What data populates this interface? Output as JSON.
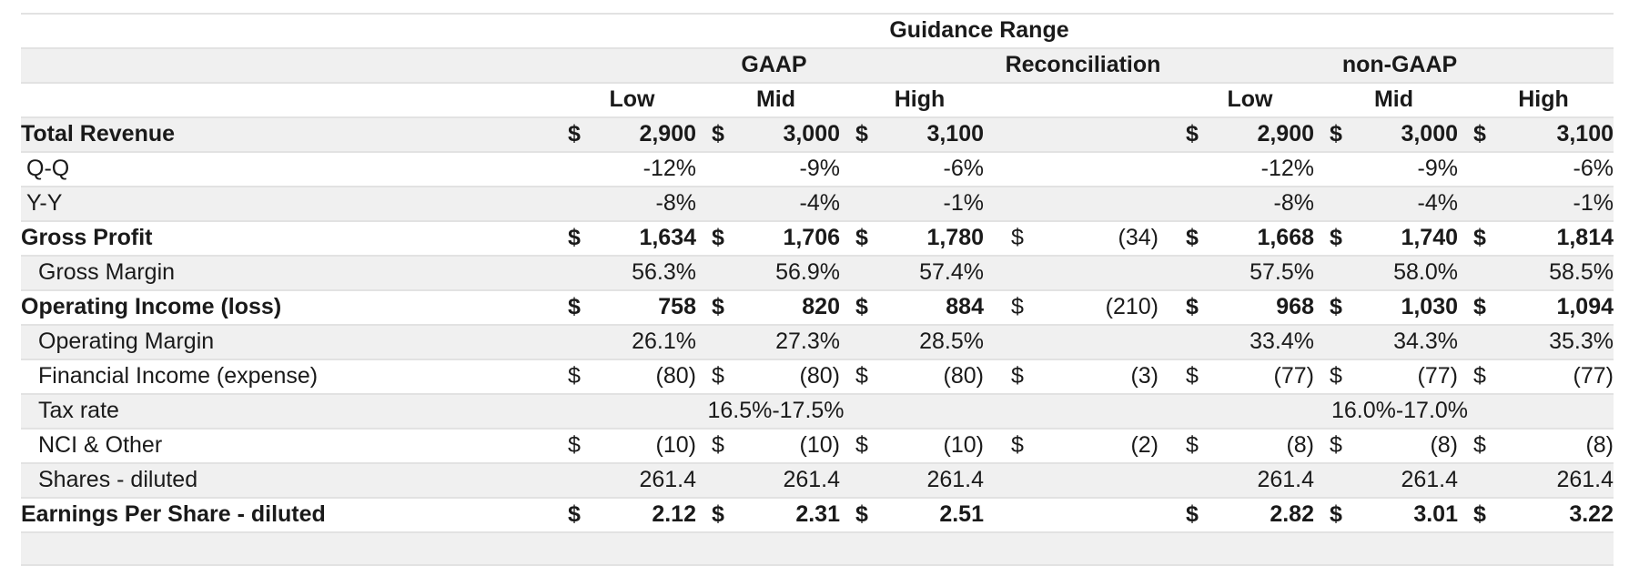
{
  "header": {
    "guidance_range": "Guidance Range",
    "gaap": "GAAP",
    "reconciliation": "Reconciliation",
    "non_gaap": "non-GAAP",
    "low": "Low",
    "mid": "Mid",
    "high": "High"
  },
  "rows": [
    {
      "label": "Total Revenue",
      "bold": true,
      "indent": false,
      "gaap": [
        {
          "d": "$",
          "v": "2,900"
        },
        {
          "d": "$",
          "v": "3,000"
        },
        {
          "d": "$",
          "v": "3,100"
        }
      ],
      "rec": null,
      "non_gaap": [
        {
          "d": "$",
          "v": "2,900"
        },
        {
          "d": "$",
          "v": "3,000"
        },
        {
          "d": "$",
          "v": "3,100"
        }
      ]
    },
    {
      "label": "Q-Q",
      "bold": false,
      "indent": "small",
      "gaap": [
        {
          "d": "",
          "v": "-12%"
        },
        {
          "d": "",
          "v": "-9%"
        },
        {
          "d": "",
          "v": "-6%"
        }
      ],
      "rec": null,
      "non_gaap": [
        {
          "d": "",
          "v": "-12%"
        },
        {
          "d": "",
          "v": "-9%"
        },
        {
          "d": "",
          "v": "-6%"
        }
      ]
    },
    {
      "label": "Y-Y",
      "bold": false,
      "indent": "small",
      "gaap": [
        {
          "d": "",
          "v": "-8%"
        },
        {
          "d": "",
          "v": "-4%"
        },
        {
          "d": "",
          "v": "-1%"
        }
      ],
      "rec": null,
      "non_gaap": [
        {
          "d": "",
          "v": "-8%"
        },
        {
          "d": "",
          "v": "-4%"
        },
        {
          "d": "",
          "v": "-1%"
        }
      ]
    },
    {
      "label": "Gross Profit",
      "bold": true,
      "indent": false,
      "gaap": [
        {
          "d": "$",
          "v": "1,634"
        },
        {
          "d": "$",
          "v": "1,706"
        },
        {
          "d": "$",
          "v": "1,780"
        }
      ],
      "rec": {
        "d": "$",
        "v": "(34)"
      },
      "non_gaap": [
        {
          "d": "$",
          "v": "1,668"
        },
        {
          "d": "$",
          "v": "1,740"
        },
        {
          "d": "$",
          "v": "1,814"
        }
      ]
    },
    {
      "label": "Gross Margin",
      "bold": false,
      "indent": true,
      "gaap": [
        {
          "d": "",
          "v": "56.3%"
        },
        {
          "d": "",
          "v": "56.9%"
        },
        {
          "d": "",
          "v": "57.4%"
        }
      ],
      "rec": null,
      "non_gaap": [
        {
          "d": "",
          "v": "57.5%"
        },
        {
          "d": "",
          "v": "58.0%"
        },
        {
          "d": "",
          "v": "58.5%"
        }
      ]
    },
    {
      "label": "Operating Income (loss)",
      "bold": true,
      "indent": false,
      "gaap": [
        {
          "d": "$",
          "v": "758"
        },
        {
          "d": "$",
          "v": "820"
        },
        {
          "d": "$",
          "v": "884"
        }
      ],
      "rec": {
        "d": "$",
        "v": "(210)"
      },
      "non_gaap": [
        {
          "d": "$",
          "v": "968"
        },
        {
          "d": "$",
          "v": "1,030"
        },
        {
          "d": "$",
          "v": "1,094"
        }
      ]
    },
    {
      "label": "Operating Margin",
      "bold": false,
      "indent": true,
      "gaap": [
        {
          "d": "",
          "v": "26.1%"
        },
        {
          "d": "",
          "v": "27.3%"
        },
        {
          "d": "",
          "v": "28.5%"
        }
      ],
      "rec": null,
      "non_gaap": [
        {
          "d": "",
          "v": "33.4%"
        },
        {
          "d": "",
          "v": "34.3%"
        },
        {
          "d": "",
          "v": "35.3%"
        }
      ]
    },
    {
      "label": "Financial Income (expense)",
      "bold": false,
      "indent": true,
      "gaap": [
        {
          "d": "$",
          "v": "(80)"
        },
        {
          "d": "$",
          "v": "(80)"
        },
        {
          "d": "$",
          "v": "(80)"
        }
      ],
      "rec": {
        "d": "$",
        "v": "(3)"
      },
      "non_gaap": [
        {
          "d": "$",
          "v": "(77)"
        },
        {
          "d": "$",
          "v": "(77)"
        },
        {
          "d": "$",
          "v": "(77)"
        }
      ]
    },
    {
      "label": "Tax rate",
      "bold": false,
      "indent": true,
      "gaap_span": "16.5%-17.5%",
      "rec": null,
      "non_gaap_span": "16.0%-17.0%"
    },
    {
      "label": "NCI & Other",
      "bold": false,
      "indent": true,
      "gaap": [
        {
          "d": "$",
          "v": "(10)"
        },
        {
          "d": "$",
          "v": "(10)"
        },
        {
          "d": "$",
          "v": "(10)"
        }
      ],
      "rec": {
        "d": "$",
        "v": "(2)"
      },
      "non_gaap": [
        {
          "d": "$",
          "v": "(8)"
        },
        {
          "d": "$",
          "v": "(8)"
        },
        {
          "d": "$",
          "v": "(8)"
        }
      ]
    },
    {
      "label": "Shares - diluted",
      "bold": false,
      "indent": true,
      "gaap": [
        {
          "d": "",
          "v": "261.4"
        },
        {
          "d": "",
          "v": "261.4"
        },
        {
          "d": "",
          "v": "261.4"
        }
      ],
      "rec": null,
      "non_gaap": [
        {
          "d": "",
          "v": "261.4"
        },
        {
          "d": "",
          "v": "261.4"
        },
        {
          "d": "",
          "v": "261.4"
        }
      ]
    },
    {
      "label": "Earnings Per Share - diluted",
      "bold": true,
      "indent": false,
      "gaap": [
        {
          "d": "$",
          "v": "2.12"
        },
        {
          "d": "$",
          "v": "2.31"
        },
        {
          "d": "$",
          "v": "2.51"
        }
      ],
      "rec": null,
      "non_gaap": [
        {
          "d": "$",
          "v": "2.82"
        },
        {
          "d": "$",
          "v": "3.01"
        },
        {
          "d": "$",
          "v": "3.22"
        }
      ]
    }
  ]
}
